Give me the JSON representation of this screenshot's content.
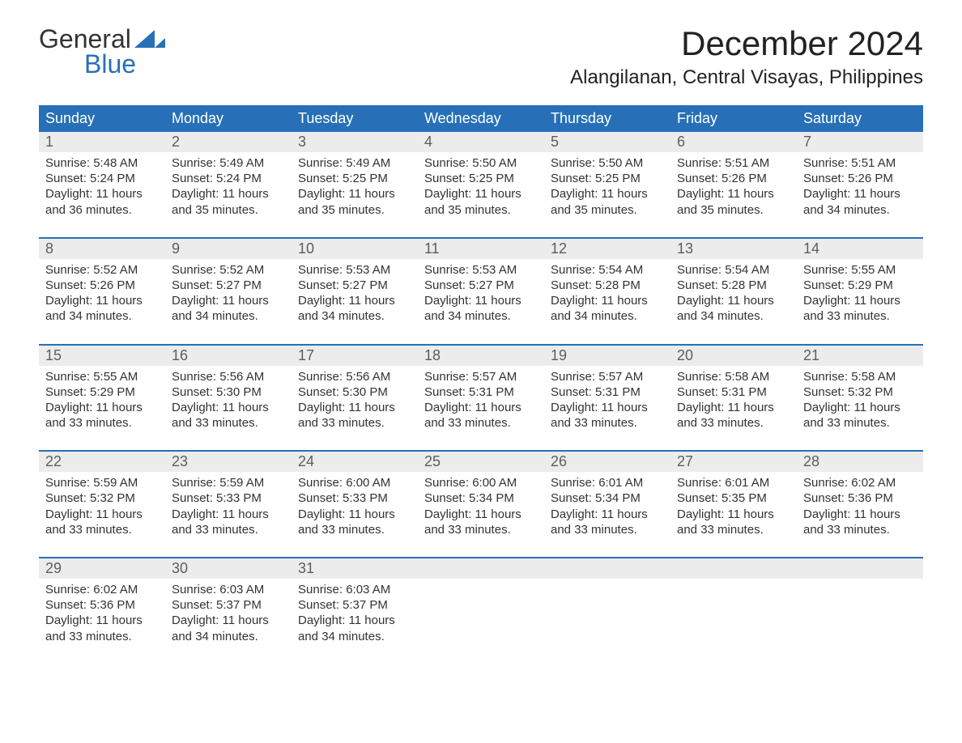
{
  "logo": {
    "word1": "General",
    "word2": "Blue"
  },
  "title": "December 2024",
  "location": "Alangilanan, Central Visayas, Philippines",
  "colors": {
    "header_bg": "#2770b8",
    "header_text": "#ffffff",
    "daynum_bg": "#ececec",
    "daynum_text": "#5e5e5e",
    "body_text": "#333333",
    "logo_blue": "#2770b8",
    "background": "#ffffff"
  },
  "day_headers": [
    "Sunday",
    "Monday",
    "Tuesday",
    "Wednesday",
    "Thursday",
    "Friday",
    "Saturday"
  ],
  "weeks": [
    [
      {
        "day": "1",
        "sunrise": "Sunrise: 5:48 AM",
        "sunset": "Sunset: 5:24 PM",
        "dl1": "Daylight: 11 hours",
        "dl2": "and 36 minutes."
      },
      {
        "day": "2",
        "sunrise": "Sunrise: 5:49 AM",
        "sunset": "Sunset: 5:24 PM",
        "dl1": "Daylight: 11 hours",
        "dl2": "and 35 minutes."
      },
      {
        "day": "3",
        "sunrise": "Sunrise: 5:49 AM",
        "sunset": "Sunset: 5:25 PM",
        "dl1": "Daylight: 11 hours",
        "dl2": "and 35 minutes."
      },
      {
        "day": "4",
        "sunrise": "Sunrise: 5:50 AM",
        "sunset": "Sunset: 5:25 PM",
        "dl1": "Daylight: 11 hours",
        "dl2": "and 35 minutes."
      },
      {
        "day": "5",
        "sunrise": "Sunrise: 5:50 AM",
        "sunset": "Sunset: 5:25 PM",
        "dl1": "Daylight: 11 hours",
        "dl2": "and 35 minutes."
      },
      {
        "day": "6",
        "sunrise": "Sunrise: 5:51 AM",
        "sunset": "Sunset: 5:26 PM",
        "dl1": "Daylight: 11 hours",
        "dl2": "and 35 minutes."
      },
      {
        "day": "7",
        "sunrise": "Sunrise: 5:51 AM",
        "sunset": "Sunset: 5:26 PM",
        "dl1": "Daylight: 11 hours",
        "dl2": "and 34 minutes."
      }
    ],
    [
      {
        "day": "8",
        "sunrise": "Sunrise: 5:52 AM",
        "sunset": "Sunset: 5:26 PM",
        "dl1": "Daylight: 11 hours",
        "dl2": "and 34 minutes."
      },
      {
        "day": "9",
        "sunrise": "Sunrise: 5:52 AM",
        "sunset": "Sunset: 5:27 PM",
        "dl1": "Daylight: 11 hours",
        "dl2": "and 34 minutes."
      },
      {
        "day": "10",
        "sunrise": "Sunrise: 5:53 AM",
        "sunset": "Sunset: 5:27 PM",
        "dl1": "Daylight: 11 hours",
        "dl2": "and 34 minutes."
      },
      {
        "day": "11",
        "sunrise": "Sunrise: 5:53 AM",
        "sunset": "Sunset: 5:27 PM",
        "dl1": "Daylight: 11 hours",
        "dl2": "and 34 minutes."
      },
      {
        "day": "12",
        "sunrise": "Sunrise: 5:54 AM",
        "sunset": "Sunset: 5:28 PM",
        "dl1": "Daylight: 11 hours",
        "dl2": "and 34 minutes."
      },
      {
        "day": "13",
        "sunrise": "Sunrise: 5:54 AM",
        "sunset": "Sunset: 5:28 PM",
        "dl1": "Daylight: 11 hours",
        "dl2": "and 34 minutes."
      },
      {
        "day": "14",
        "sunrise": "Sunrise: 5:55 AM",
        "sunset": "Sunset: 5:29 PM",
        "dl1": "Daylight: 11 hours",
        "dl2": "and 33 minutes."
      }
    ],
    [
      {
        "day": "15",
        "sunrise": "Sunrise: 5:55 AM",
        "sunset": "Sunset: 5:29 PM",
        "dl1": "Daylight: 11 hours",
        "dl2": "and 33 minutes."
      },
      {
        "day": "16",
        "sunrise": "Sunrise: 5:56 AM",
        "sunset": "Sunset: 5:30 PM",
        "dl1": "Daylight: 11 hours",
        "dl2": "and 33 minutes."
      },
      {
        "day": "17",
        "sunrise": "Sunrise: 5:56 AM",
        "sunset": "Sunset: 5:30 PM",
        "dl1": "Daylight: 11 hours",
        "dl2": "and 33 minutes."
      },
      {
        "day": "18",
        "sunrise": "Sunrise: 5:57 AM",
        "sunset": "Sunset: 5:31 PM",
        "dl1": "Daylight: 11 hours",
        "dl2": "and 33 minutes."
      },
      {
        "day": "19",
        "sunrise": "Sunrise: 5:57 AM",
        "sunset": "Sunset: 5:31 PM",
        "dl1": "Daylight: 11 hours",
        "dl2": "and 33 minutes."
      },
      {
        "day": "20",
        "sunrise": "Sunrise: 5:58 AM",
        "sunset": "Sunset: 5:31 PM",
        "dl1": "Daylight: 11 hours",
        "dl2": "and 33 minutes."
      },
      {
        "day": "21",
        "sunrise": "Sunrise: 5:58 AM",
        "sunset": "Sunset: 5:32 PM",
        "dl1": "Daylight: 11 hours",
        "dl2": "and 33 minutes."
      }
    ],
    [
      {
        "day": "22",
        "sunrise": "Sunrise: 5:59 AM",
        "sunset": "Sunset: 5:32 PM",
        "dl1": "Daylight: 11 hours",
        "dl2": "and 33 minutes."
      },
      {
        "day": "23",
        "sunrise": "Sunrise: 5:59 AM",
        "sunset": "Sunset: 5:33 PM",
        "dl1": "Daylight: 11 hours",
        "dl2": "and 33 minutes."
      },
      {
        "day": "24",
        "sunrise": "Sunrise: 6:00 AM",
        "sunset": "Sunset: 5:33 PM",
        "dl1": "Daylight: 11 hours",
        "dl2": "and 33 minutes."
      },
      {
        "day": "25",
        "sunrise": "Sunrise: 6:00 AM",
        "sunset": "Sunset: 5:34 PM",
        "dl1": "Daylight: 11 hours",
        "dl2": "and 33 minutes."
      },
      {
        "day": "26",
        "sunrise": "Sunrise: 6:01 AM",
        "sunset": "Sunset: 5:34 PM",
        "dl1": "Daylight: 11 hours",
        "dl2": "and 33 minutes."
      },
      {
        "day": "27",
        "sunrise": "Sunrise: 6:01 AM",
        "sunset": "Sunset: 5:35 PM",
        "dl1": "Daylight: 11 hours",
        "dl2": "and 33 minutes."
      },
      {
        "day": "28",
        "sunrise": "Sunrise: 6:02 AM",
        "sunset": "Sunset: 5:36 PM",
        "dl1": "Daylight: 11 hours",
        "dl2": "and 33 minutes."
      }
    ],
    [
      {
        "day": "29",
        "sunrise": "Sunrise: 6:02 AM",
        "sunset": "Sunset: 5:36 PM",
        "dl1": "Daylight: 11 hours",
        "dl2": "and 33 minutes."
      },
      {
        "day": "30",
        "sunrise": "Sunrise: 6:03 AM",
        "sunset": "Sunset: 5:37 PM",
        "dl1": "Daylight: 11 hours",
        "dl2": "and 34 minutes."
      },
      {
        "day": "31",
        "sunrise": "Sunrise: 6:03 AM",
        "sunset": "Sunset: 5:37 PM",
        "dl1": "Daylight: 11 hours",
        "dl2": "and 34 minutes."
      },
      {
        "day": "",
        "sunrise": "",
        "sunset": "",
        "dl1": "",
        "dl2": ""
      },
      {
        "day": "",
        "sunrise": "",
        "sunset": "",
        "dl1": "",
        "dl2": ""
      },
      {
        "day": "",
        "sunrise": "",
        "sunset": "",
        "dl1": "",
        "dl2": ""
      },
      {
        "day": "",
        "sunrise": "",
        "sunset": "",
        "dl1": "",
        "dl2": ""
      }
    ]
  ]
}
